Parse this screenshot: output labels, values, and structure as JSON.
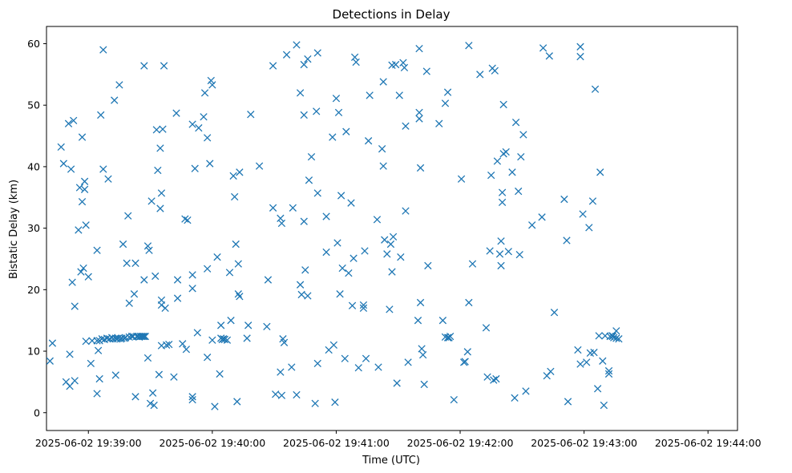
{
  "chart_data": {
    "type": "scatter",
    "title": "Detections in Delay",
    "xlabel": "Time (UTC)",
    "ylabel": "Bistatic Delay (km)",
    "marker": "x",
    "marker_color": "#1f77b4",
    "xlim_minutes": [
      -0.338,
      5.238
    ],
    "ylim": [
      -2.9,
      62.8
    ],
    "x_ticks": [
      {
        "t": 0,
        "label": "2025-06-02 19:39:00"
      },
      {
        "t": 1,
        "label": "2025-06-02 19:40:00"
      },
      {
        "t": 2,
        "label": "2025-06-02 19:41:00"
      },
      {
        "t": 3,
        "label": "2025-06-02 19:42:00"
      },
      {
        "t": 4,
        "label": "2025-06-02 19:43:00"
      },
      {
        "t": 5,
        "label": "2025-06-02 19:44:00"
      }
    ],
    "y_ticks": [
      {
        "v": 0,
        "label": "0"
      },
      {
        "v": 10,
        "label": "10"
      },
      {
        "v": 20,
        "label": "20"
      },
      {
        "v": 30,
        "label": "30"
      },
      {
        "v": 40,
        "label": "40"
      },
      {
        "v": 50,
        "label": "50"
      },
      {
        "v": 60,
        "label": "60"
      }
    ],
    "x_note": "x values are minutes after 2025-06-02 19:39:00 UTC",
    "points": [
      [
        -0.31,
        8.4
      ],
      [
        -0.29,
        11.3
      ],
      [
        -0.22,
        43.2
      ],
      [
        -0.2,
        40.5
      ],
      [
        -0.18,
        5.0
      ],
      [
        -0.16,
        47.0
      ],
      [
        -0.15,
        9.5
      ],
      [
        -0.14,
        39.6
      ],
      [
        -0.15,
        4.3
      ],
      [
        -0.13,
        21.2
      ],
      [
        -0.11,
        17.3
      ],
      [
        -0.12,
        47.5
      ],
      [
        -0.11,
        5.2
      ],
      [
        -0.07,
        36.6
      ],
      [
        -0.08,
        29.7
      ],
      [
        -0.06,
        22.9
      ],
      [
        -0.05,
        44.8
      ],
      [
        -0.05,
        34.3
      ],
      [
        -0.04,
        23.5
      ],
      [
        -0.03,
        37.6
      ],
      [
        -0.03,
        36.3
      ],
      [
        -0.02,
        30.5
      ],
      [
        -0.02,
        11.6
      ],
      [
        0.0,
        22.1
      ],
      [
        0.02,
        8.0
      ],
      [
        0.03,
        11.7
      ],
      [
        0.07,
        11.7
      ],
      [
        0.07,
        26.4
      ],
      [
        0.07,
        3.1
      ],
      [
        0.08,
        10.1
      ],
      [
        0.09,
        11.7
      ],
      [
        0.09,
        5.5
      ],
      [
        0.1,
        48.4
      ],
      [
        0.11,
        12.0
      ],
      [
        0.12,
        39.6
      ],
      [
        0.12,
        59.0
      ],
      [
        0.13,
        11.9
      ],
      [
        0.15,
        12.1
      ],
      [
        0.16,
        38.0
      ],
      [
        0.17,
        12.0
      ],
      [
        0.19,
        12.2
      ],
      [
        0.2,
        12.0
      ],
      [
        0.21,
        50.8
      ],
      [
        0.22,
        12.1
      ],
      [
        0.22,
        6.1
      ],
      [
        0.23,
        12.0
      ],
      [
        0.24,
        12.1
      ],
      [
        0.25,
        53.3
      ],
      [
        0.26,
        12.0
      ],
      [
        0.27,
        12.1
      ],
      [
        0.28,
        27.4
      ],
      [
        0.29,
        12.1
      ],
      [
        0.3,
        12.2
      ],
      [
        0.31,
        24.3
      ],
      [
        0.32,
        32.0
      ],
      [
        0.33,
        12.3
      ],
      [
        0.33,
        17.8
      ],
      [
        0.35,
        12.4
      ],
      [
        0.36,
        12.4
      ],
      [
        0.37,
        19.3
      ],
      [
        0.38,
        2.6
      ],
      [
        0.38,
        24.3
      ],
      [
        0.39,
        12.4
      ],
      [
        0.4,
        12.4
      ],
      [
        0.41,
        12.3
      ],
      [
        0.42,
        12.4
      ],
      [
        0.43,
        12.4
      ],
      [
        0.44,
        12.4
      ],
      [
        0.45,
        12.4
      ],
      [
        0.45,
        21.6
      ],
      [
        0.45,
        56.4
      ],
      [
        0.46,
        12.4
      ],
      [
        0.48,
        27.1
      ],
      [
        0.48,
        8.9
      ],
      [
        0.49,
        26.4
      ],
      [
        0.5,
        1.5
      ],
      [
        0.51,
        34.4
      ],
      [
        0.52,
        3.2
      ],
      [
        0.53,
        1.2
      ],
      [
        0.54,
        22.2
      ],
      [
        0.55,
        46.0
      ],
      [
        0.56,
        39.4
      ],
      [
        0.57,
        6.2
      ],
      [
        0.58,
        43.0
      ],
      [
        0.58,
        33.2
      ],
      [
        0.59,
        18.3
      ],
      [
        0.59,
        17.5
      ],
      [
        0.59,
        35.7
      ],
      [
        0.59,
        10.9
      ],
      [
        0.6,
        46.1
      ],
      [
        0.61,
        56.4
      ],
      [
        0.62,
        17.0
      ],
      [
        0.63,
        11.0
      ],
      [
        0.65,
        11.1
      ],
      [
        0.69,
        5.8
      ],
      [
        0.71,
        48.7
      ],
      [
        0.72,
        21.6
      ],
      [
        0.72,
        18.6
      ],
      [
        0.76,
        11.2
      ],
      [
        0.78,
        31.5
      ],
      [
        0.79,
        10.3
      ],
      [
        0.8,
        31.3
      ],
      [
        0.84,
        22.4
      ],
      [
        0.84,
        46.9
      ],
      [
        0.84,
        20.2
      ],
      [
        0.84,
        2.6
      ],
      [
        0.84,
        2.1
      ],
      [
        0.86,
        39.7
      ],
      [
        0.88,
        13.0
      ],
      [
        0.89,
        46.3
      ],
      [
        0.93,
        48.1
      ],
      [
        0.94,
        52.0
      ],
      [
        0.96,
        9.0
      ],
      [
        0.96,
        23.4
      ],
      [
        0.96,
        44.7
      ],
      [
        0.98,
        40.5
      ],
      [
        0.99,
        54.0
      ],
      [
        1.0,
        53.3
      ],
      [
        1.0,
        11.8
      ],
      [
        1.02,
        1.0
      ],
      [
        1.04,
        25.3
      ],
      [
        1.06,
        6.3
      ],
      [
        1.07,
        12.1
      ],
      [
        1.07,
        14.2
      ],
      [
        1.08,
        11.9
      ],
      [
        1.09,
        12.0
      ],
      [
        1.1,
        11.9
      ],
      [
        1.12,
        11.8
      ],
      [
        1.14,
        22.8
      ],
      [
        1.15,
        15.0
      ],
      [
        1.17,
        38.5
      ],
      [
        1.18,
        35.1
      ],
      [
        1.19,
        27.4
      ],
      [
        1.2,
        1.8
      ],
      [
        1.21,
        19.3
      ],
      [
        1.21,
        24.2
      ],
      [
        1.22,
        18.9
      ],
      [
        1.22,
        39.1
      ],
      [
        1.28,
        12.1
      ],
      [
        1.29,
        14.2
      ],
      [
        1.31,
        48.5
      ],
      [
        1.38,
        40.1
      ],
      [
        1.44,
        14.0
      ],
      [
        1.45,
        21.6
      ],
      [
        1.49,
        33.3
      ],
      [
        1.49,
        56.4
      ],
      [
        1.51,
        3.0
      ],
      [
        1.55,
        31.6
      ],
      [
        1.55,
        6.6
      ],
      [
        1.56,
        30.8
      ],
      [
        1.56,
        2.8
      ],
      [
        1.57,
        12.0
      ],
      [
        1.58,
        11.4
      ],
      [
        1.6,
        58.2
      ],
      [
        1.64,
        7.4
      ],
      [
        1.65,
        33.3
      ],
      [
        1.68,
        59.8
      ],
      [
        1.68,
        2.9
      ],
      [
        1.71,
        52.0
      ],
      [
        1.71,
        20.8
      ],
      [
        1.72,
        19.2
      ],
      [
        1.74,
        56.6
      ],
      [
        1.74,
        48.4
      ],
      [
        1.74,
        31.1
      ],
      [
        1.75,
        23.2
      ],
      [
        1.77,
        57.5
      ],
      [
        1.77,
        19.0
      ],
      [
        1.78,
        37.8
      ],
      [
        1.8,
        41.6
      ],
      [
        1.83,
        1.5
      ],
      [
        1.84,
        49.0
      ],
      [
        1.85,
        58.5
      ],
      [
        1.85,
        35.7
      ],
      [
        1.85,
        8.0
      ],
      [
        1.92,
        26.1
      ],
      [
        1.92,
        31.9
      ],
      [
        1.94,
        10.2
      ],
      [
        1.97,
        44.8
      ],
      [
        1.98,
        11.0
      ],
      [
        1.99,
        1.7
      ],
      [
        2.0,
        51.1
      ],
      [
        2.01,
        27.6
      ],
      [
        2.02,
        48.8
      ],
      [
        2.03,
        19.3
      ],
      [
        2.04,
        35.3
      ],
      [
        2.05,
        23.5
      ],
      [
        2.07,
        8.8
      ],
      [
        2.08,
        45.7
      ],
      [
        2.1,
        22.7
      ],
      [
        2.12,
        34.1
      ],
      [
        2.13,
        17.4
      ],
      [
        2.14,
        25.1
      ],
      [
        2.15,
        57.8
      ],
      [
        2.16,
        57.0
      ],
      [
        2.18,
        7.3
      ],
      [
        2.22,
        17.0
      ],
      [
        2.22,
        17.5
      ],
      [
        2.23,
        26.3
      ],
      [
        2.24,
        8.8
      ],
      [
        2.26,
        44.2
      ],
      [
        2.27,
        51.6
      ],
      [
        2.33,
        31.4
      ],
      [
        2.34,
        7.4
      ],
      [
        2.37,
        42.9
      ],
      [
        2.38,
        40.1
      ],
      [
        2.38,
        53.8
      ],
      [
        2.39,
        28.1
      ],
      [
        2.41,
        25.8
      ],
      [
        2.43,
        16.8
      ],
      [
        2.44,
        27.4
      ],
      [
        2.45,
        56.5
      ],
      [
        2.45,
        22.9
      ],
      [
        2.46,
        28.6
      ],
      [
        2.48,
        56.6
      ],
      [
        2.49,
        4.8
      ],
      [
        2.51,
        51.6
      ],
      [
        2.52,
        25.3
      ],
      [
        2.54,
        56.9
      ],
      [
        2.55,
        56.1
      ],
      [
        2.56,
        46.6
      ],
      [
        2.56,
        32.8
      ],
      [
        2.58,
        8.2
      ],
      [
        2.66,
        15.0
      ],
      [
        2.67,
        59.2
      ],
      [
        2.67,
        48.8
      ],
      [
        2.67,
        47.8
      ],
      [
        2.68,
        39.8
      ],
      [
        2.68,
        17.9
      ],
      [
        2.69,
        10.4
      ],
      [
        2.7,
        9.4
      ],
      [
        2.71,
        4.6
      ],
      [
        2.73,
        55.5
      ],
      [
        2.74,
        23.9
      ],
      [
        2.83,
        47.0
      ],
      [
        2.86,
        15.0
      ],
      [
        2.88,
        12.3
      ],
      [
        2.88,
        50.3
      ],
      [
        2.9,
        52.1
      ],
      [
        2.9,
        12.2
      ],
      [
        2.91,
        12.2
      ],
      [
        2.92,
        12.4
      ],
      [
        2.95,
        2.1
      ],
      [
        3.01,
        38.0
      ],
      [
        3.03,
        8.2
      ],
      [
        3.04,
        8.3
      ],
      [
        3.06,
        9.9
      ],
      [
        3.07,
        59.7
      ],
      [
        3.07,
        17.9
      ],
      [
        3.1,
        24.2
      ],
      [
        3.16,
        55.0
      ],
      [
        3.21,
        13.8
      ],
      [
        3.22,
        5.8
      ],
      [
        3.24,
        26.3
      ],
      [
        3.25,
        38.6
      ],
      [
        3.26,
        56.0
      ],
      [
        3.27,
        5.3
      ],
      [
        3.28,
        55.6
      ],
      [
        3.29,
        5.5
      ],
      [
        3.3,
        40.9
      ],
      [
        3.32,
        25.8
      ],
      [
        3.33,
        27.9
      ],
      [
        3.33,
        23.9
      ],
      [
        3.34,
        35.8
      ],
      [
        3.34,
        34.2
      ],
      [
        3.35,
        50.1
      ],
      [
        3.35,
        42.1
      ],
      [
        3.37,
        42.4
      ],
      [
        3.39,
        26.2
      ],
      [
        3.42,
        39.1
      ],
      [
        3.44,
        2.4
      ],
      [
        3.45,
        47.2
      ],
      [
        3.47,
        36.0
      ],
      [
        3.48,
        25.7
      ],
      [
        3.49,
        41.6
      ],
      [
        3.51,
        45.2
      ],
      [
        3.53,
        3.5
      ],
      [
        3.58,
        30.5
      ],
      [
        3.66,
        31.8
      ],
      [
        3.67,
        59.3
      ],
      [
        3.7,
        6.0
      ],
      [
        3.72,
        58.0
      ],
      [
        3.73,
        6.7
      ],
      [
        3.76,
        16.3
      ],
      [
        3.84,
        34.7
      ],
      [
        3.86,
        28.0
      ],
      [
        3.87,
        1.8
      ],
      [
        3.95,
        10.2
      ],
      [
        3.97,
        59.5
      ],
      [
        3.97,
        57.9
      ],
      [
        3.97,
        7.9
      ],
      [
        3.99,
        32.3
      ],
      [
        4.02,
        8.2
      ],
      [
        4.04,
        30.1
      ],
      [
        4.05,
        9.7
      ],
      [
        4.07,
        34.4
      ],
      [
        4.08,
        9.8
      ],
      [
        4.09,
        52.6
      ],
      [
        4.11,
        3.9
      ],
      [
        4.12,
        12.5
      ],
      [
        4.13,
        39.1
      ],
      [
        4.15,
        8.4
      ],
      [
        4.16,
        1.2
      ],
      [
        4.17,
        12.5
      ],
      [
        4.2,
        6.8
      ],
      [
        4.2,
        6.3
      ],
      [
        4.21,
        12.4
      ],
      [
        4.23,
        12.4
      ],
      [
        4.24,
        12.2
      ],
      [
        4.26,
        12.1
      ],
      [
        4.26,
        13.3
      ],
      [
        4.28,
        12.0
      ],
      [
        4.23,
        12.5
      ]
    ]
  }
}
